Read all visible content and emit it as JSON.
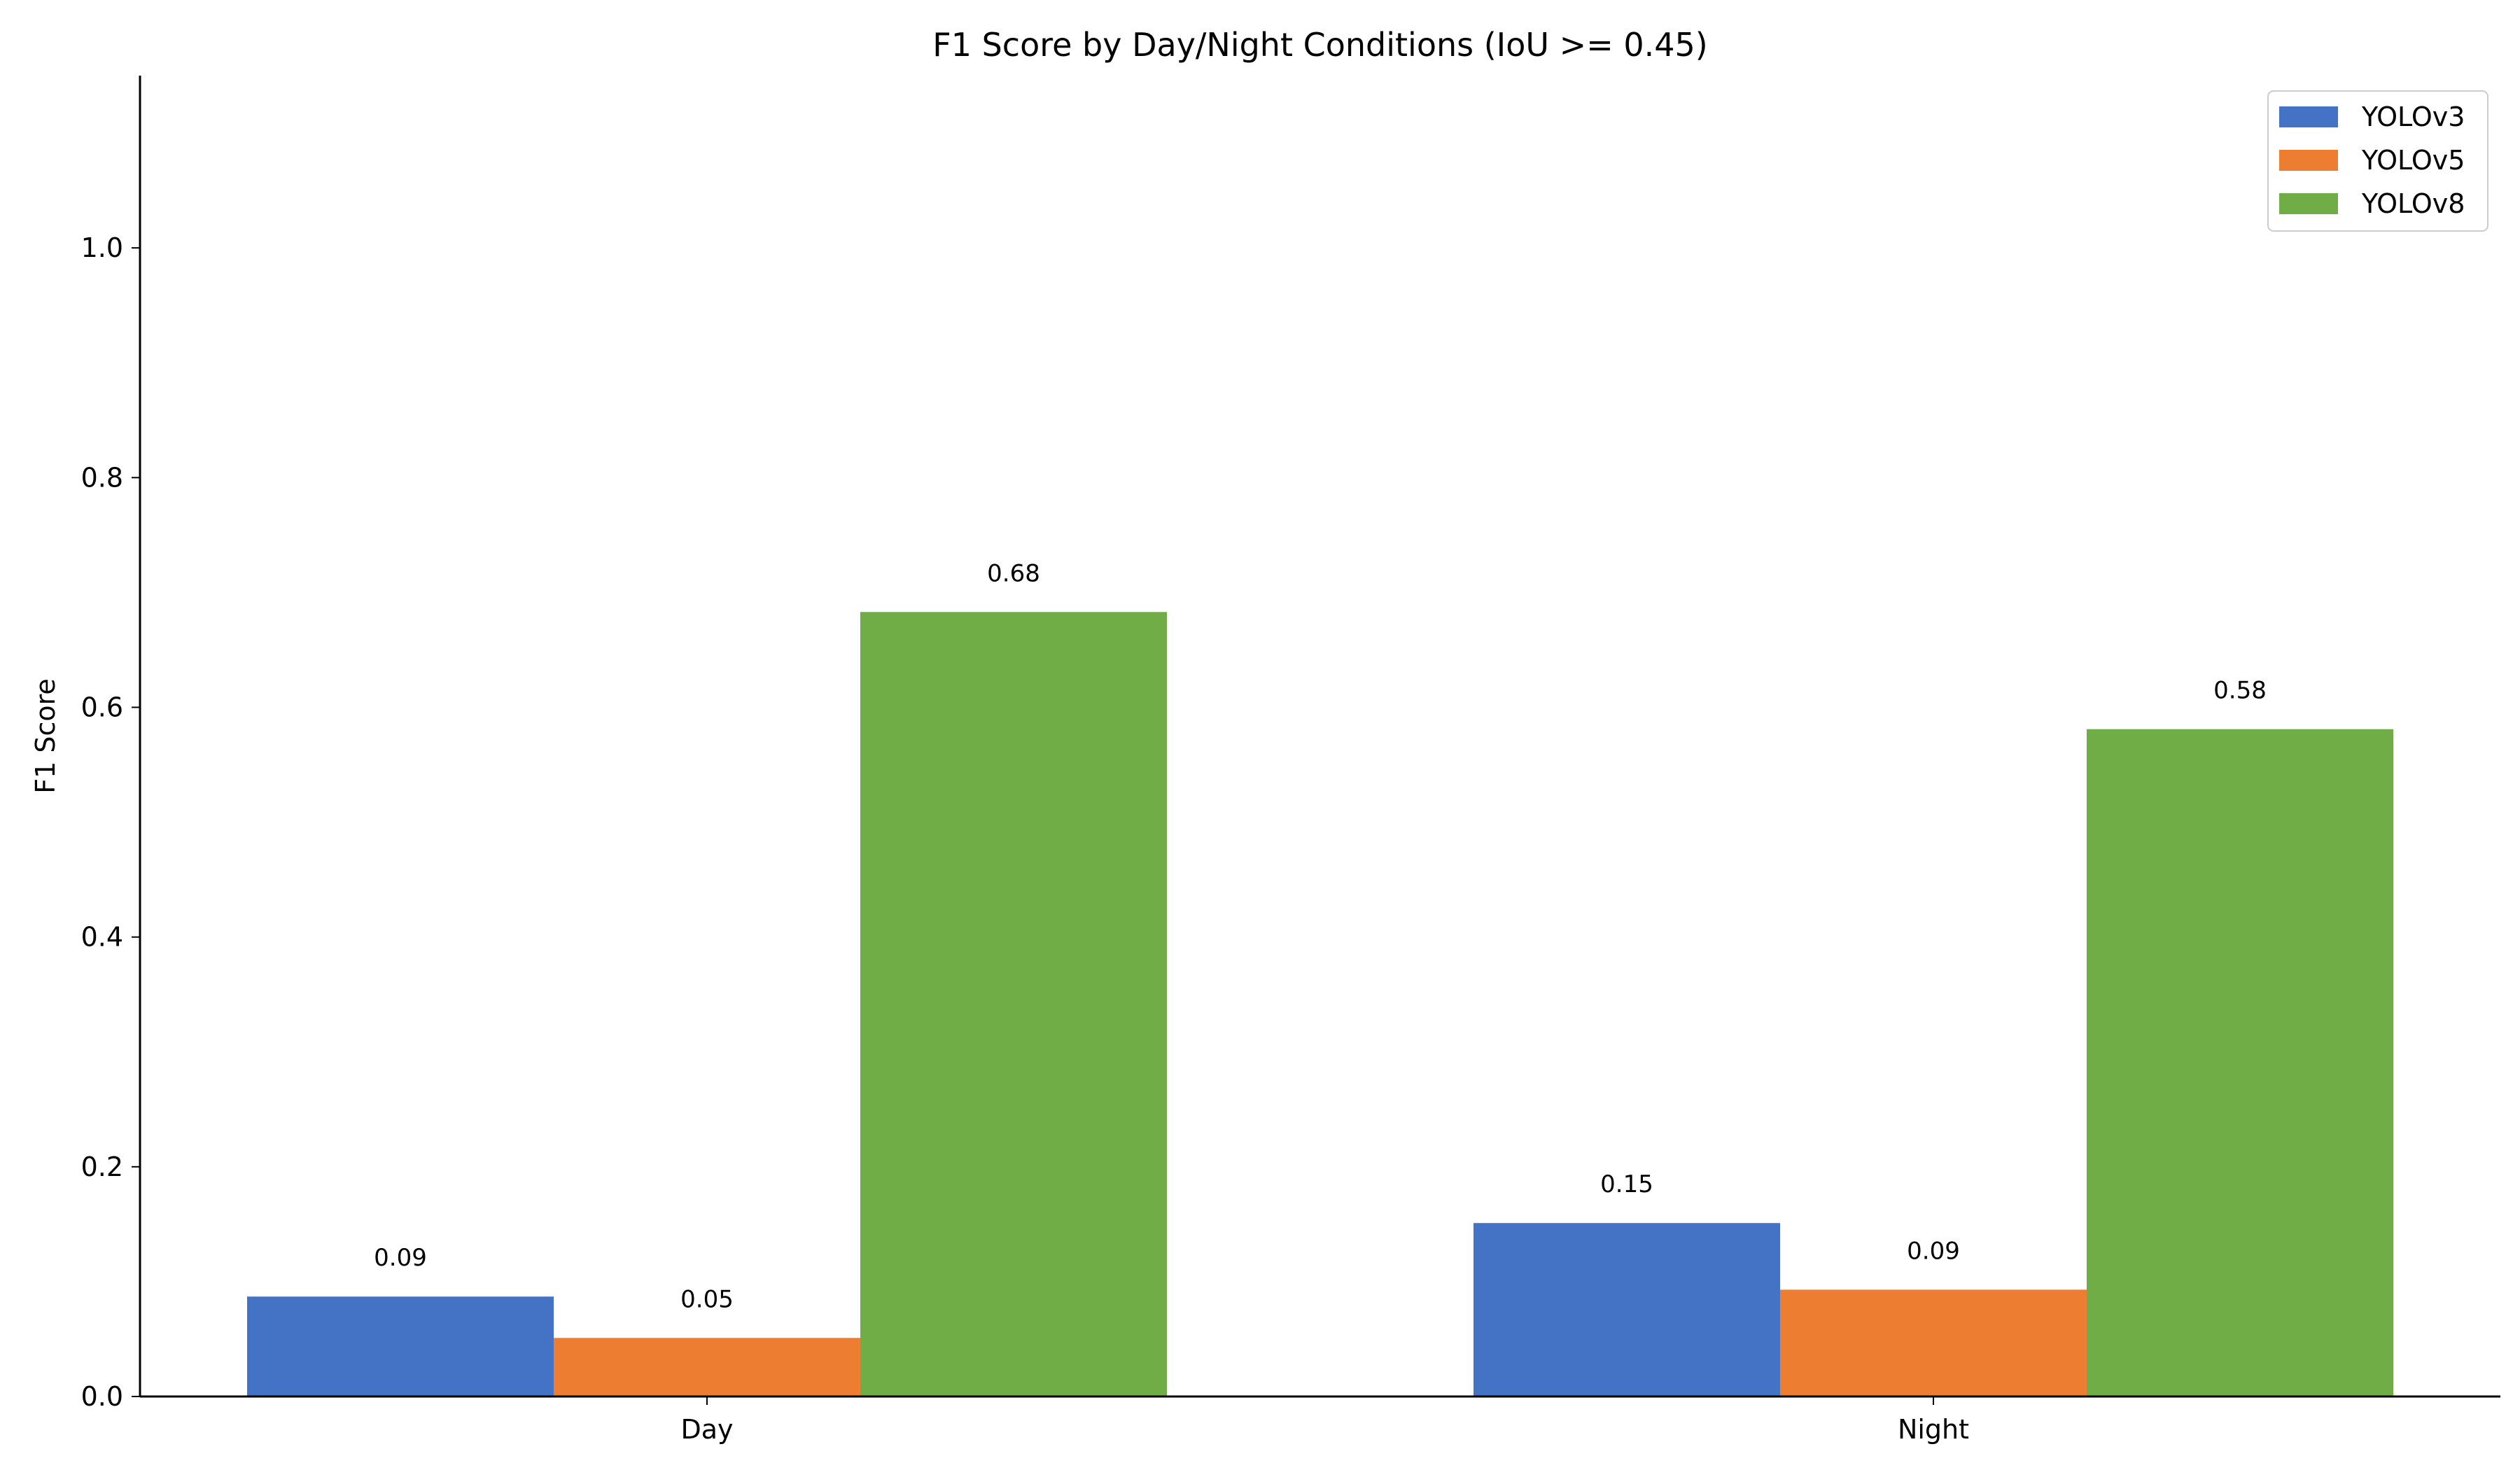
{
  "chart_data": {
    "type": "bar",
    "title": "F1 Score by Day/Night Conditions (IoU >= 0.45)",
    "xlabel": "",
    "ylabel": "F1 Score",
    "categories": [
      "Day",
      "Night"
    ],
    "series": [
      {
        "name": "YOLOv3",
        "color": "#4472c4",
        "values": [
          0.087,
          0.151
        ],
        "labels": [
          "0.09",
          "0.15"
        ]
      },
      {
        "name": "YOLOv5",
        "color": "#ed7d31",
        "values": [
          0.051,
          0.093
        ],
        "labels": [
          "0.05",
          "0.09"
        ]
      },
      {
        "name": "YOLOv8",
        "color": "#70ad47",
        "values": [
          0.683,
          0.581
        ],
        "labels": [
          "0.68",
          "0.58"
        ]
      }
    ],
    "ylim": [
      0,
      1.15
    ],
    "yticks": [
      0.0,
      0.2,
      0.4,
      0.6,
      0.8,
      1.0
    ],
    "ytick_labels": [
      "0.0",
      "0.2",
      "0.4",
      "0.6",
      "0.8",
      "1.0"
    ],
    "grid": false,
    "legend_position": "top-right"
  }
}
